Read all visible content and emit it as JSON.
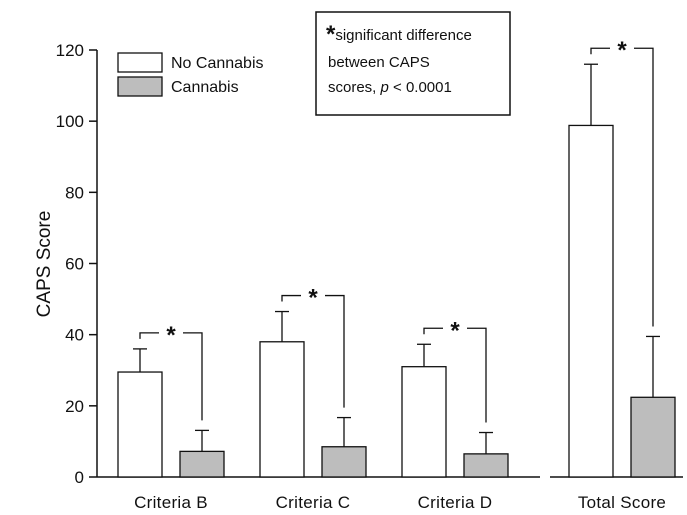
{
  "chart_data": {
    "type": "bar",
    "ylabel": "CAPS Score",
    "ylim": [
      0,
      120
    ],
    "yticks": [
      "0",
      "20",
      "40",
      "60",
      "80",
      "100",
      "120"
    ],
    "categories": [
      "Criteria B",
      "Criteria C",
      "Criteria D",
      "Total Score"
    ],
    "series": [
      {
        "name": "No Cannabis",
        "values": [
          29.5,
          38,
          31,
          98.8
        ],
        "errors": [
          6.5,
          8.5,
          6.3,
          17.2
        ],
        "color": "#ffffff"
      },
      {
        "name": "Cannabis",
        "values": [
          7.2,
          8.5,
          6.5,
          22.4
        ],
        "errors": [
          5.9,
          8.2,
          6.0,
          17.1
        ],
        "color": "#bdbdbd"
      }
    ],
    "significance_marker": "*",
    "annotation": {
      "star": "*",
      "line1": "significant difference",
      "line2": "between CAPS",
      "line3_prefix": "scores, ",
      "line3_italic": "p",
      "line3_suffix": " < 0.0001"
    },
    "legend_position": "top-left",
    "grid": false
  }
}
